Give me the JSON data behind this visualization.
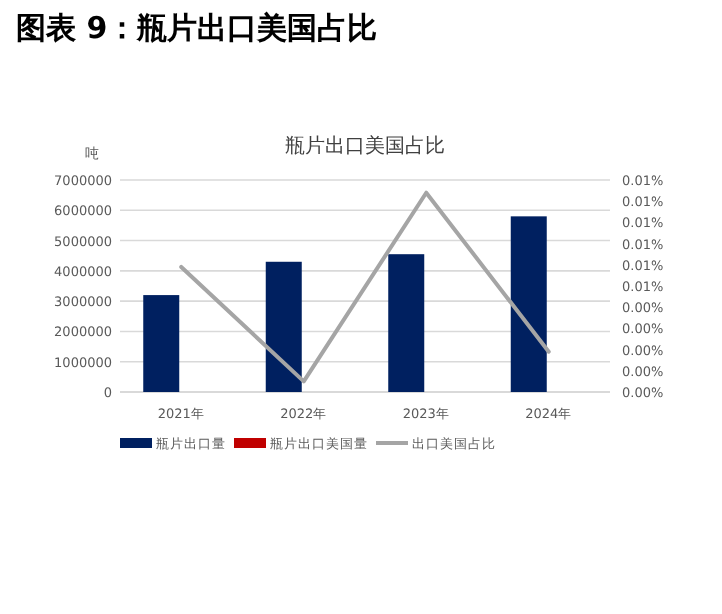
{
  "chart_data": {
    "type": "bar",
    "title": "图表 9：瓶片出口美国占比",
    "subtitle": "瓶片出口美国占比",
    "ylabel": "吨",
    "categories": [
      "2021年",
      "2022年",
      "2023年",
      "2024年"
    ],
    "series": [
      {
        "name": "瓶片出口量",
        "color": "#002060",
        "values": [
          3200000,
          4300000,
          4550000,
          5800000
        ]
      },
      {
        "name": "瓶片出口美国量",
        "color": "#c00000",
        "values": [
          0,
          0,
          0,
          0
        ]
      },
      {
        "name": "出口美国占比",
        "type": "line",
        "axis": "y2",
        "color": "#a5a5a5",
        "values": [
          0.0059,
          0.0005,
          0.0094,
          0.0019
        ]
      }
    ],
    "ylim": [
      0,
      7000000
    ],
    "yticks": [
      0,
      1000000,
      2000000,
      3000000,
      4000000,
      5000000,
      6000000,
      7000000
    ],
    "y2lim": [
      0,
      0.01
    ],
    "y2ticks": [
      {
        "value": 0,
        "label": "0.00%"
      },
      {
        "value": 0.001,
        "label": "0.00%"
      },
      {
        "value": 0.002,
        "label": "0.00%"
      },
      {
        "value": 0.003,
        "label": "0.00%"
      },
      {
        "value": 0.004,
        "label": "0.00%"
      },
      {
        "value": 0.005,
        "label": "0.01%"
      },
      {
        "value": 0.006,
        "label": "0.01%"
      },
      {
        "value": 0.007,
        "label": "0.01%"
      },
      {
        "value": 0.008,
        "label": "0.01%"
      },
      {
        "value": 0.009,
        "label": "0.01%"
      },
      {
        "value": 0.01,
        "label": "0.01%"
      }
    ],
    "grid": "y",
    "legend": "bottom"
  }
}
